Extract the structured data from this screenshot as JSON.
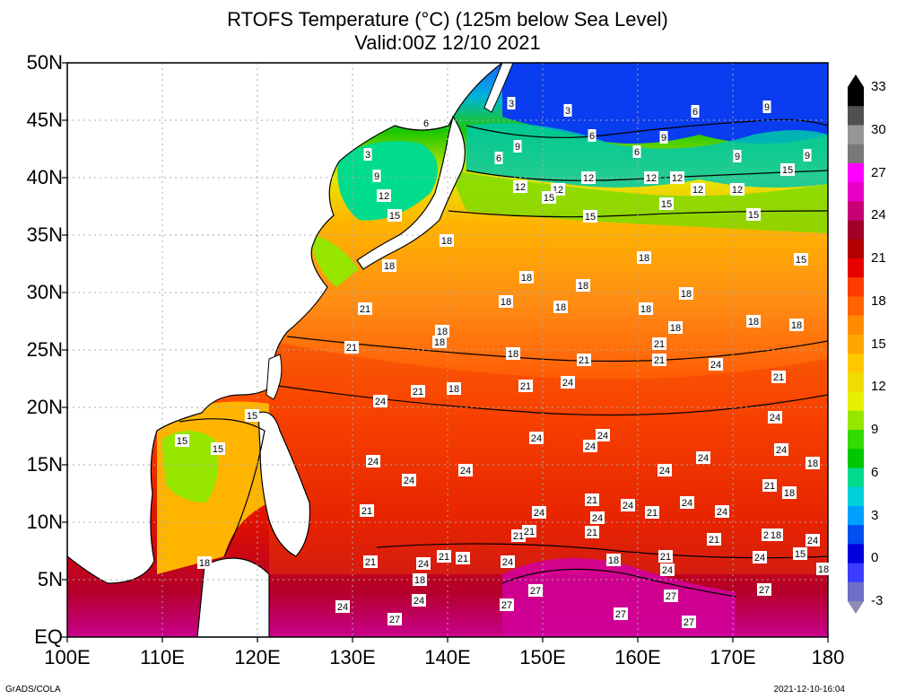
{
  "title_line1": "RTOFS Temperature (°C) (125m below Sea Level)",
  "title_line2": "Valid:00Z 12/10 2021",
  "lat_labels": [
    "EQ",
    "5N",
    "10N",
    "15N",
    "20N",
    "25N",
    "30N",
    "35N",
    "40N",
    "45N",
    "50N"
  ],
  "lon_labels": [
    "100E",
    "110E",
    "120E",
    "130E",
    "140E",
    "150E",
    "160E",
    "170E",
    "180"
  ],
  "colorbar": {
    "labels": [
      "-3",
      "0",
      "3",
      "6",
      "9",
      "12",
      "15",
      "18",
      "21",
      "24",
      "27",
      "30",
      "33"
    ],
    "colors": [
      "#6e6ec8",
      "#3c3cff",
      "#0000dc",
      "#0050f0",
      "#00a0ff",
      "#00d2dc",
      "#00dc8c",
      "#00c800",
      "#32dc00",
      "#96e600",
      "#e6f000",
      "#f0dc00",
      "#ffc800",
      "#ffa500",
      "#ff8c00",
      "#ff6400",
      "#ff3c00",
      "#e60000",
      "#b40000",
      "#a0002a",
      "#c80078",
      "#e600c8",
      "#ff00ff",
      "#787878",
      "#969696",
      "#505050",
      "#000000"
    ]
  },
  "contour_labels": [
    "3",
    "3",
    "3",
    "6",
    "6",
    "6",
    "6",
    "6",
    "9",
    "9",
    "9",
    "9",
    "9",
    "9",
    "12",
    "12",
    "12",
    "12",
    "12",
    "12",
    "12",
    "12",
    "15",
    "15",
    "15",
    "15",
    "15",
    "15",
    "18",
    "18",
    "18",
    "18",
    "18",
    "18",
    "18",
    "21",
    "21",
    "21",
    "21",
    "21",
    "21",
    "24",
    "24",
    "24",
    "24",
    "24",
    "24",
    "27",
    "27",
    "27",
    "27"
  ],
  "footer_left": "GrADS/COLA",
  "footer_right": "2021-12-10-16:04"
}
